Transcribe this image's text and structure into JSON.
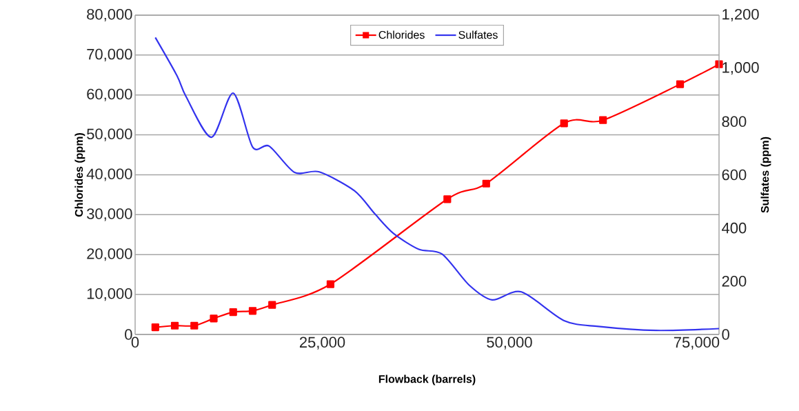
{
  "chart_data": {
    "type": "line",
    "xlabel": "Flowback (barrels)",
    "ylabel": "Chlorides (ppm)",
    "y2label": "Sulfates (ppm)",
    "xlim": [
      0,
      78000
    ],
    "xticks": [
      0,
      {
        "value": 25000,
        "label": "25,000"
      },
      {
        "value": 50000,
        "label": "50,000"
      },
      {
        "value": 75000,
        "label": "75,000"
      }
    ],
    "ylim": [
      0,
      80000
    ],
    "yticks": [
      0,
      {
        "value": 10000,
        "label": "10,000"
      },
      {
        "value": 20000,
        "label": "20,000"
      },
      {
        "value": 30000,
        "label": "30,000"
      },
      {
        "value": 40000,
        "label": "40,000"
      },
      {
        "value": 50000,
        "label": "50,000"
      },
      {
        "value": 60000,
        "label": "60,000"
      },
      {
        "value": 70000,
        "label": "70,000"
      },
      {
        "value": 80000,
        "label": "80,000"
      }
    ],
    "y2lim": [
      0,
      1200
    ],
    "y2ticks": [
      0,
      200,
      400,
      600,
      800,
      {
        "value": 1000,
        "label": "1,000"
      },
      {
        "value": 1200,
        "label": "1,200"
      }
    ],
    "grid": "y",
    "legend": "top",
    "series": [
      {
        "name": "Chlorides",
        "color": "#ff0000",
        "marker": "square",
        "x": [
          2700,
          5300,
          7900,
          10500,
          13100,
          15700,
          18300,
          26100,
          41700,
          46900,
          57300,
          62500,
          72800,
          78000
        ],
        "values": [
          1800,
          2200,
          2200,
          4000,
          5600,
          5900,
          7400,
          12600,
          33900,
          37800,
          52900,
          53700,
          62700,
          67700
        ]
      },
      {
        "name": "Sulfates",
        "color": "#3333ee",
        "marker": "none",
        "axis": "y2",
        "x": [
          2700,
          5600,
          6800,
          10200,
          13100,
          15700,
          17900,
          21300,
          24600,
          29300,
          32000,
          34500,
          37900,
          41000,
          44600,
          47700,
          51600,
          57300,
          61900,
          69600,
          78000
        ],
        "values": [
          1116,
          972,
          894,
          741,
          907,
          704,
          708,
          609,
          611,
          540,
          454,
          380,
          320,
          302,
          186,
          130,
          160,
          52,
          30,
          15,
          22
        ]
      }
    ]
  }
}
